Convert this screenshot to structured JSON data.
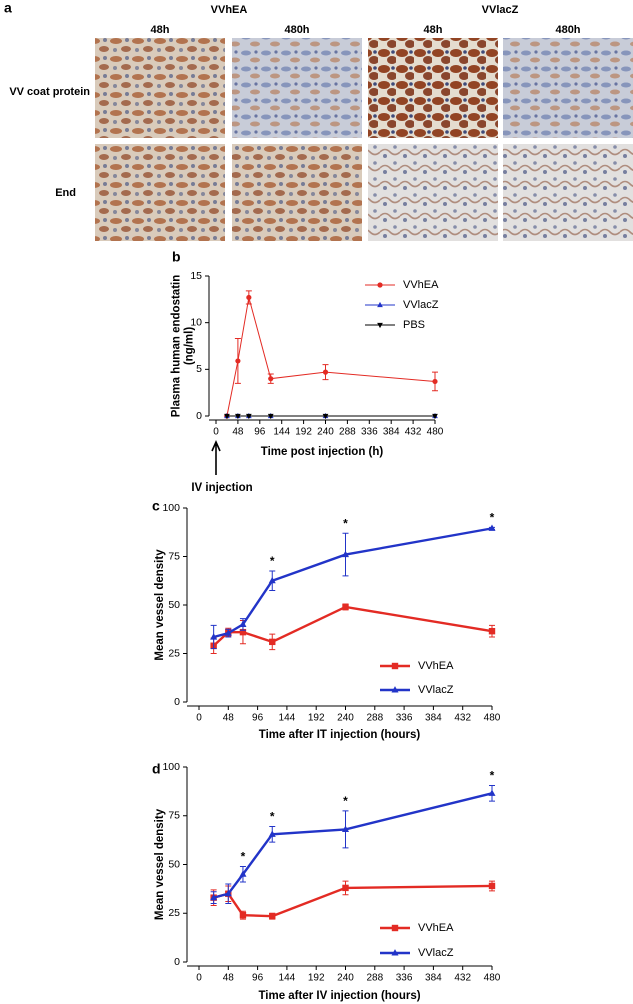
{
  "panel_a": {
    "label": "a",
    "groups": [
      "VVhEA",
      "VVlacZ"
    ],
    "columns": [
      "48h",
      "480h",
      "48h",
      "480h"
    ],
    "rows": [
      "VV coat protein",
      "End"
    ]
  },
  "chart_data": [
    {
      "type": "line",
      "panel_label": "b",
      "ylabel": [
        "Plasma human endostatin",
        "(ng/ml)"
      ],
      "xlabel": "Time post injection (h)",
      "arrow_label": "IV injection",
      "x": [
        24,
        48,
        72,
        120,
        240,
        480
      ],
      "xlim": [
        0,
        480
      ],
      "xticks": [
        0,
        48,
        96,
        144,
        192,
        240,
        288,
        336,
        384,
        432,
        480
      ],
      "ylim": [
        0,
        15
      ],
      "yticks": [
        0,
        5,
        10,
        15
      ],
      "legend": "upper right",
      "series": [
        {
          "name": "VVhEA",
          "color": "#e32b24",
          "marker": "circle",
          "values": [
            0,
            5.9,
            12.7,
            4,
            4.7,
            3.7
          ],
          "errors": [
            0,
            2.4,
            0.7,
            0.5,
            0.8,
            1.0
          ]
        },
        {
          "name": "VVlacZ",
          "color": "#2234c8",
          "marker": "triangle-up",
          "values": [
            0,
            0,
            0,
            0,
            0,
            0
          ]
        },
        {
          "name": "PBS",
          "color": "#000000",
          "marker": "triangle-down",
          "values": [
            0,
            0,
            0,
            0,
            0,
            0
          ]
        }
      ]
    },
    {
      "type": "line",
      "panel_label": "c",
      "ylabel": [
        "Mean vessel density"
      ],
      "xlabel": "Time after IT injection (hours)",
      "x": [
        24,
        48,
        72,
        120,
        240,
        480
      ],
      "xlim": [
        0,
        480
      ],
      "xticks": [
        0,
        48,
        96,
        144,
        192,
        240,
        288,
        336,
        384,
        432,
        480
      ],
      "ylim": [
        0,
        100
      ],
      "yticks": [
        0,
        25,
        50,
        75,
        100
      ],
      "legend": "lower right",
      "series": [
        {
          "name": "VVhEA",
          "color": "#e32b24",
          "marker": "square",
          "values": [
            29,
            36,
            36,
            31,
            49,
            36.5
          ],
          "errors": [
            4,
            2,
            6,
            4,
            1.5,
            3
          ]
        },
        {
          "name": "VVlacZ",
          "color": "#2234c8",
          "marker": "triangle-up",
          "values": [
            33.5,
            35.5,
            40,
            62.5,
            76,
            89.5
          ],
          "errors": [
            6,
            2,
            3,
            5,
            11,
            0.5
          ]
        }
      ],
      "annotations": [
        {
          "text": "*",
          "x": 120
        },
        {
          "text": "*",
          "x": 240
        },
        {
          "text": "*",
          "x": 480
        }
      ]
    },
    {
      "type": "line",
      "panel_label": "d",
      "ylabel": [
        "Mean vessel density"
      ],
      "xlabel": "Time after IV injection (hours)",
      "x": [
        24,
        48,
        72,
        120,
        240,
        480
      ],
      "xlim": [
        0,
        480
      ],
      "xticks": [
        0,
        48,
        96,
        144,
        192,
        240,
        288,
        336,
        384,
        432,
        480
      ],
      "ylim": [
        0,
        100
      ],
      "yticks": [
        0,
        25,
        50,
        75,
        100
      ],
      "legend": "lower right",
      "series": [
        {
          "name": "VVhEA",
          "color": "#e32b24",
          "marker": "square",
          "values": [
            33,
            35,
            24,
            23.5,
            38,
            39
          ],
          "errors": [
            4,
            4,
            2,
            1.5,
            3.5,
            2.5
          ]
        },
        {
          "name": "VVlacZ",
          "color": "#2234c8",
          "marker": "triangle-up",
          "values": [
            33,
            35,
            45,
            65.5,
            68,
            86.5
          ],
          "errors": [
            3,
            5,
            4,
            4,
            9.5,
            4
          ]
        }
      ],
      "annotations": [
        {
          "text": "*",
          "x": 72
        },
        {
          "text": "*",
          "x": 120
        },
        {
          "text": "*",
          "x": 240
        },
        {
          "text": "*",
          "x": 480
        }
      ]
    }
  ]
}
